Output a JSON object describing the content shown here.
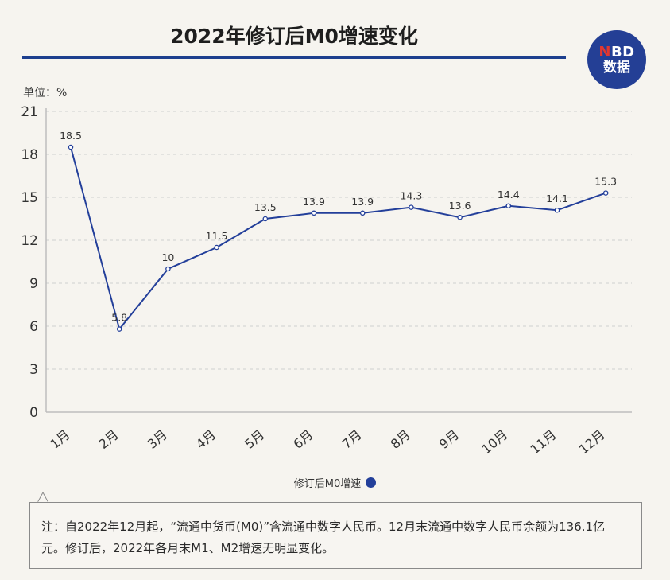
{
  "header": {
    "title": "2022年修订后M0增速变化"
  },
  "logo": {
    "line1_n": "N",
    "line1_rest": "BD",
    "line2": "数据"
  },
  "unit_label": "单位：%",
  "legend": {
    "label": "修订后M0增速"
  },
  "note": {
    "text": "注：自2022年12月起，“流通中货币(M0)”含流通中数字人民币。12月末流通中数字人民币余额为136.1亿元。修订后，2022年各月末M1、M2增速无明显变化。"
  },
  "colors": {
    "series": "#233f9a",
    "title_rule": "#1d3f8e",
    "logo_bg": "#243f95",
    "logo_n": "#e2372f"
  },
  "chart_data": {
    "type": "line",
    "title": "2022年修订后M0增速变化",
    "ylabel": "单位：%",
    "xlabel": "",
    "categories": [
      "1月",
      "2月",
      "3月",
      "4月",
      "5月",
      "6月",
      "7月",
      "8月",
      "9月",
      "10月",
      "11月",
      "12月"
    ],
    "series": [
      {
        "name": "修订后M0增速",
        "values": [
          18.5,
          5.8,
          10,
          11.5,
          13.5,
          13.9,
          13.9,
          14.3,
          13.6,
          14.4,
          14.1,
          15.3
        ],
        "labels": [
          "18.5",
          "5.8",
          "10",
          "11.5",
          "13.5",
          "13.9",
          "13.9",
          "14.3",
          "13.6",
          "14.4",
          "14.1",
          "15.3"
        ]
      }
    ],
    "ylim": [
      0,
      21
    ],
    "yticks": [
      0,
      3,
      6,
      9,
      12,
      15,
      18,
      21
    ],
    "grid": true,
    "legend_position": "bottom-center"
  }
}
